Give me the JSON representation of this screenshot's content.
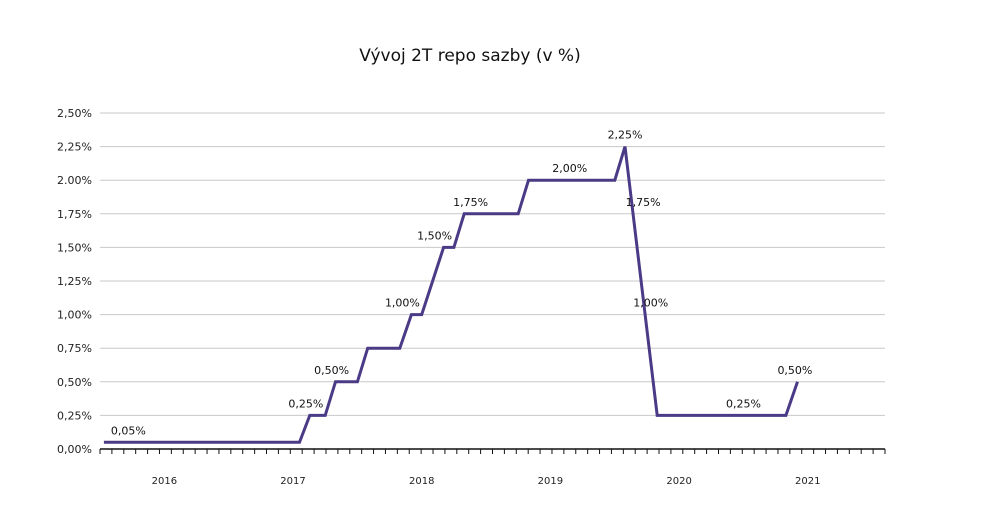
{
  "chart_data": {
    "type": "line",
    "title": "Vývoj 2T repo sazby (v %)",
    "xlabel": "",
    "ylabel": "",
    "ylim": [
      0,
      2.5
    ],
    "y_ticks": [
      0,
      0.25,
      0.5,
      0.75,
      1.0,
      1.25,
      1.5,
      1.75,
      2.0,
      2.25,
      2.5
    ],
    "y_tick_labels": [
      "0,00%",
      "0,25%",
      "0,50%",
      "0,75%",
      "1,00%",
      "1,25%",
      "1,50%",
      "1,75%",
      "2.00%",
      "2,25%",
      "2,50%"
    ],
    "x_range": [
      2015.5,
      2021.6
    ],
    "x_tick_labels": [
      {
        "year": 2016,
        "label": "2016"
      },
      {
        "year": 2017,
        "label": "2017"
      },
      {
        "year": 2018,
        "label": "2018"
      },
      {
        "year": 2019,
        "label": "2019"
      },
      {
        "year": 2020,
        "label": "2020"
      },
      {
        "year": 2021,
        "label": "2021"
      }
    ],
    "grid": true,
    "line_color": "#4b3a86",
    "series": [
      {
        "points": [
          [
            2015.53,
            0.05
          ],
          [
            2017.05,
            0.05
          ],
          [
            2017.13,
            0.25
          ],
          [
            2017.25,
            0.25
          ],
          [
            2017.33,
            0.5
          ],
          [
            2017.5,
            0.5
          ],
          [
            2017.58,
            0.75
          ],
          [
            2017.83,
            0.75
          ],
          [
            2017.92,
            1.0
          ],
          [
            2018.0,
            1.0
          ],
          [
            2018.17,
            1.5
          ],
          [
            2018.25,
            1.5
          ],
          [
            2018.33,
            1.75
          ],
          [
            2018.75,
            1.75
          ],
          [
            2018.83,
            2.0
          ],
          [
            2019.5,
            2.0
          ],
          [
            2019.58,
            2.25
          ],
          [
            2019.83,
            0.25
          ],
          [
            2020.83,
            0.25
          ],
          [
            2020.92,
            0.5
          ]
        ]
      }
    ],
    "data_labels": [
      {
        "x": 2015.72,
        "y": 0.05,
        "text": "0,05%"
      },
      {
        "x": 2017.1,
        "y": 0.25,
        "text": "0,25%"
      },
      {
        "x": 2017.3,
        "y": 0.5,
        "text": "0,50%"
      },
      {
        "x": 2017.85,
        "y": 1.0,
        "text": "1,00%"
      },
      {
        "x": 2018.1,
        "y": 1.5,
        "text": "1,50%"
      },
      {
        "x": 2018.38,
        "y": 1.75,
        "text": "1,75%"
      },
      {
        "x": 2019.15,
        "y": 2.0,
        "text": "2,00%"
      },
      {
        "x": 2019.58,
        "y": 2.25,
        "text": "2,25%"
      },
      {
        "x": 2019.72,
        "y": 1.75,
        "text": "1,75%"
      },
      {
        "x": 2019.78,
        "y": 1.0,
        "text": "1,00%"
      },
      {
        "x": 2020.5,
        "y": 0.25,
        "text": "0,25%"
      },
      {
        "x": 2020.9,
        "y": 0.5,
        "text": "0,50%"
      }
    ]
  }
}
